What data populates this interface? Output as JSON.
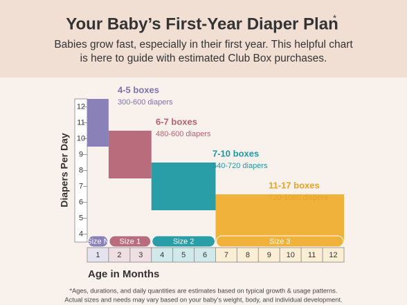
{
  "chart_data": {
    "type": "floating-bar",
    "title": "Your Baby’s First-Year Diaper Plan",
    "title_mark": "*",
    "subtitle": [
      "Babies grow fast, especially in their first year. This helpful chart",
      "is here to guide with estimated Club Box purchases."
    ],
    "y_label": "Diapers Per Day",
    "x_label": "Age in Months",
    "ylim": [
      3.5,
      12.5
    ],
    "yticks": [
      4,
      5,
      6,
      7,
      8,
      9,
      10,
      11,
      12
    ],
    "xlim": [
      0.5,
      12.5
    ],
    "xticks": [
      1,
      2,
      3,
      4,
      5,
      6,
      7,
      8,
      9,
      10,
      11,
      12
    ],
    "series": [
      {
        "name": "Size N",
        "color": "#8a81b9",
        "label_color": "#7b72ad",
        "boxes": "4-5 boxes",
        "diapers": "300-600 diapers",
        "months": [
          1,
          1
        ],
        "low": 9.5,
        "high": 12.5
      },
      {
        "name": "Size 1",
        "color": "#b86c7c",
        "label_color": "#b5616f",
        "boxes": "6-7 boxes",
        "diapers": "480-600 diapers",
        "months": [
          2,
          3
        ],
        "low": 7.5,
        "high": 10.5
      },
      {
        "name": "Size 2",
        "color": "#2a9ea6",
        "label_color": "#1e97a4",
        "boxes": "7-10 boxes",
        "diapers": "540-720 diapers",
        "months": [
          4,
          6
        ],
        "low": 5.5,
        "high": 8.5
      },
      {
        "name": "Size 3",
        "color": "#f1b23c",
        "label_color": "#e8a429",
        "boxes": "11-17 boxes",
        "diapers": "720-1080 diapers",
        "months": [
          7,
          12
        ],
        "low": 3.5,
        "high": 6.5
      }
    ],
    "footnote": [
      "*Ages, durations, and daily quantities are estimates based on typical growth & usage patterns.",
      "Actual sizes and needs may vary based on your baby’s weight, body, and individual development."
    ]
  }
}
